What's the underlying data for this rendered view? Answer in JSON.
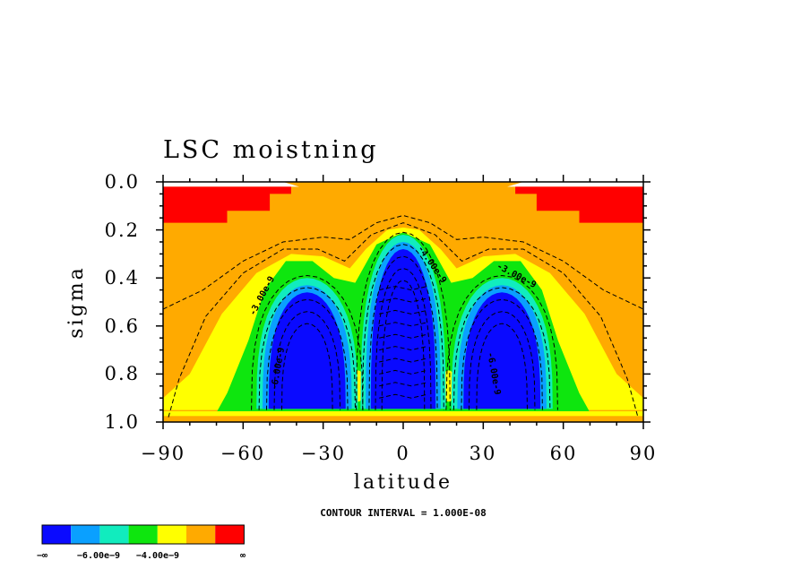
{
  "chart_data": {
    "type": "heatmap",
    "title": "LSC moistning",
    "xlabel": "latitude",
    "ylabel": "sigma",
    "xlim": [
      -90,
      90
    ],
    "ylim": [
      0.0,
      1.0
    ],
    "y_inverted": true,
    "x_ticks": [
      "−90",
      "−60",
      "−30",
      "0",
      "30",
      "60",
      "90"
    ],
    "y_ticks": [
      "0.0",
      "0.2",
      "0.4",
      "0.6",
      "0.8",
      "1.0"
    ],
    "x_tick_values": [
      -90,
      -60,
      -30,
      0,
      30,
      60,
      90
    ],
    "y_tick_values": [
      0.0,
      0.2,
      0.4,
      0.6,
      0.8,
      1.0
    ],
    "contour_interval_text": "CONTOUR INTERVAL = 1.000E-08",
    "contour_labels": [
      {
        "text": "-3.00e-9",
        "lat": -52,
        "sigma": 0.48,
        "angle": -62
      },
      {
        "text": "-3.00e-9",
        "lat": 42,
        "sigma": 0.4,
        "angle": 28
      },
      {
        "text": "-4.00e-9",
        "lat": 10,
        "sigma": 0.35,
        "angle": 55
      },
      {
        "text": "-6.00e-9",
        "lat": -46,
        "sigma": 0.78,
        "angle": -80
      },
      {
        "text": "-6.00e-9",
        "lat": 33,
        "sigma": 0.8,
        "angle": 80
      }
    ],
    "colorbar": {
      "colors": [
        "#0a0aff",
        "#0aa0ff",
        "#11ecbe",
        "#0ee60e",
        "#ffff00",
        "#ffaa00",
        "#ff0000"
      ],
      "labels": [
        "−∞",
        "−6.00e−9",
        "−4.00e−9",
        "∞"
      ]
    },
    "fill_colors": {
      "red": "#ff0000",
      "orange": "#ffaa00",
      "yellow": "#ffff00",
      "green": "#0ee60e",
      "cyan": "#11ecbe",
      "lightblue": "#0aa0ff",
      "blue": "#0a0aff",
      "white": "#ffffff"
    }
  }
}
